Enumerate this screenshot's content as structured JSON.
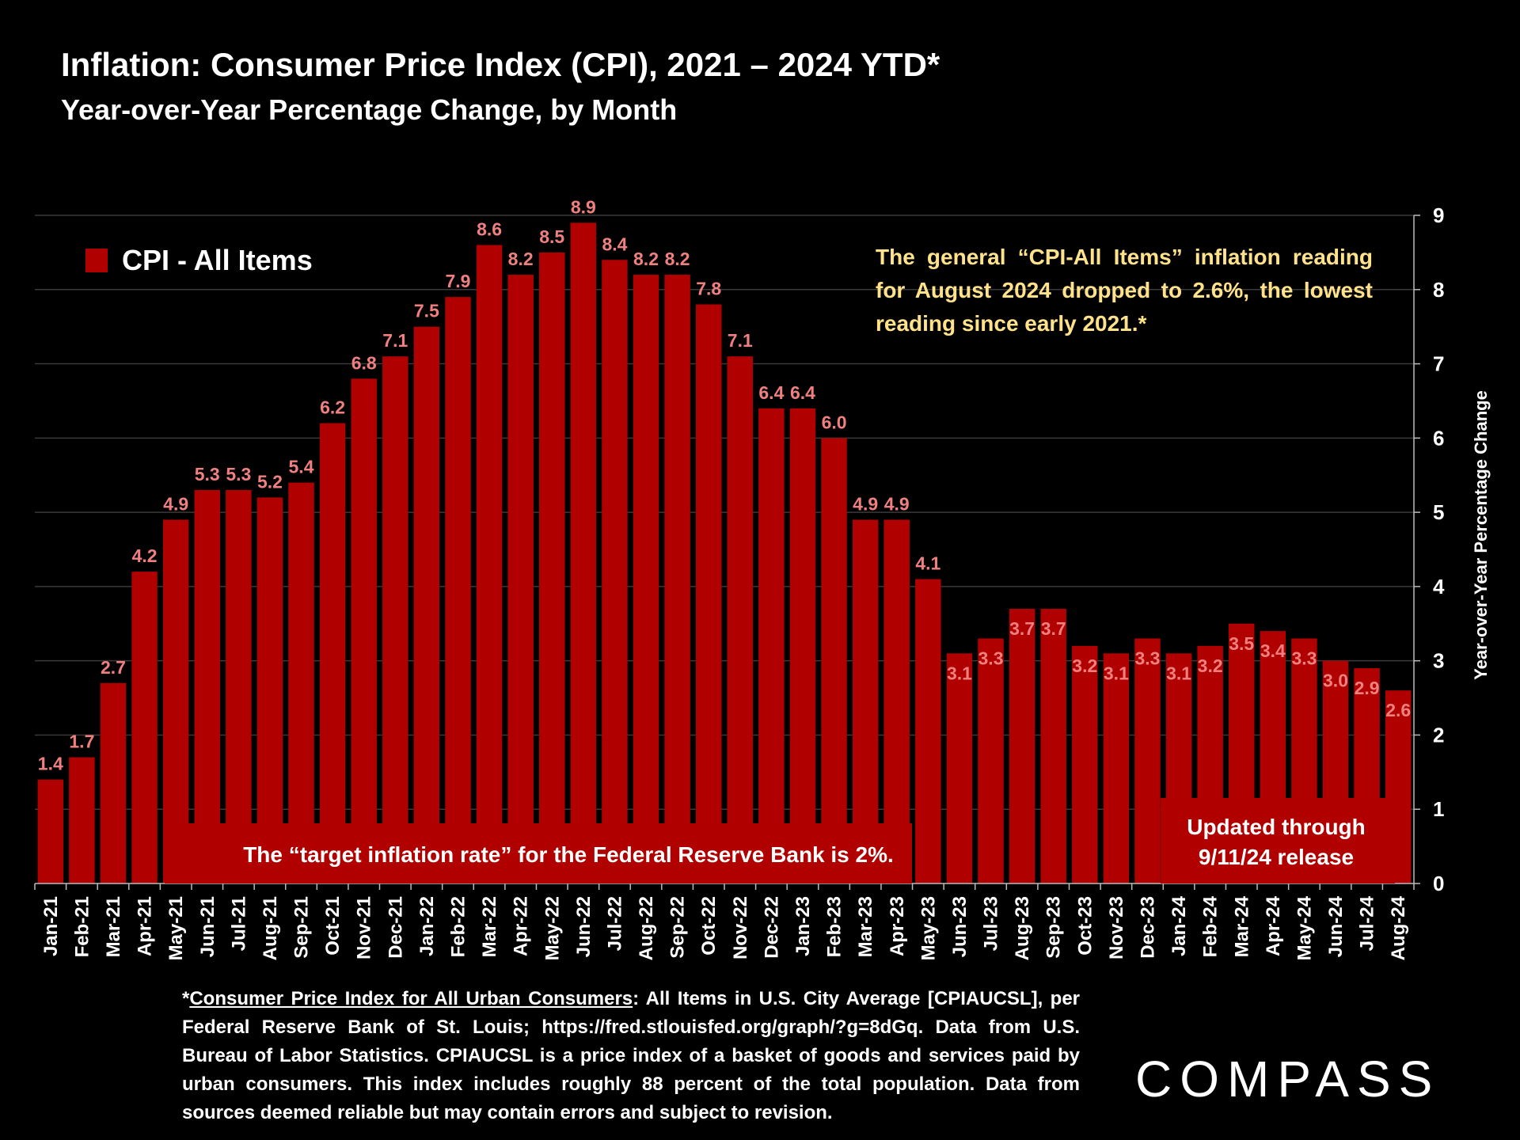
{
  "header": {
    "title": "Inflation: Consumer Price Index (CPI), 2021 – 2024 YTD*",
    "subtitle": "Year-over-Year Percentage Change, by Month"
  },
  "legend": {
    "label": "CPI - All Items",
    "color": "#b00000"
  },
  "annotations": {
    "note": "The general “CPI-All Items” inflation reading for August 2024 dropped to 2.6%, the lowest reading since early 2021.*",
    "target": "The “target inflation rate” for the Federal Reserve Bank is 2%.",
    "updated_line1": "Updated through",
    "updated_line2": "9/11/24 release"
  },
  "footnote": {
    "underlined": "Consumer Price Index for All Urban Consumers",
    "rest": ": All Items in U.S. City Average [CPIAUCSL], per Federal Reserve Bank of St. Louis; https://fred.stlouisfed.org/graph/?g=8dGq. Data from U.S. Bureau of Labor Statistics. CPIAUCSL is a price index of a basket of goods and services paid by urban consumers. This index includes roughly 88 percent of the total population. Data from sources deemed reliable but may contain errors and subject to revision."
  },
  "logo": {
    "text": "COMPASS"
  },
  "chart_data": {
    "type": "bar",
    "title": "Inflation: Consumer Price Index (CPI), 2021 – 2024 YTD*",
    "subtitle": "Year-over-Year Percentage Change, by Month",
    "ylabel": "Year-over-Year Percentage Change",
    "xlabel": "",
    "y_axis_side": "right",
    "ylim": [
      0,
      9
    ],
    "yticks": [
      0,
      1,
      2,
      3,
      4,
      5,
      6,
      7,
      8,
      9
    ],
    "grid": true,
    "legend_position": "top-left",
    "bar_color": "#b00000",
    "label_color": "#f08080",
    "categories": [
      "Jan-21",
      "Feb-21",
      "Mar-21",
      "Apr-21",
      "May-21",
      "Jun-21",
      "Jul-21",
      "Aug-21",
      "Sep-21",
      "Oct-21",
      "Nov-21",
      "Dec-21",
      "Jan-22",
      "Feb-22",
      "Mar-22",
      "Apr-22",
      "May-22",
      "Jun-22",
      "Jul-22",
      "Aug-22",
      "Sep-22",
      "Oct-22",
      "Nov-22",
      "Dec-22",
      "Jan-23",
      "Feb-23",
      "Mar-23",
      "Apr-23",
      "May-23",
      "Jun-23",
      "Jul-23",
      "Aug-23",
      "Sep-23",
      "Oct-23",
      "Nov-23",
      "Dec-23",
      "Jan-24",
      "Feb-24",
      "Mar-24",
      "Apr-24",
      "May-24",
      "Jun-24",
      "Jul-24",
      "Aug-24"
    ],
    "series": [
      {
        "name": "CPI - All Items",
        "values": [
          1.4,
          1.7,
          2.7,
          4.2,
          4.9,
          5.3,
          5.3,
          5.2,
          5.4,
          6.2,
          6.8,
          7.1,
          7.5,
          7.9,
          8.6,
          8.2,
          8.5,
          8.9,
          8.4,
          8.2,
          8.2,
          7.8,
          7.1,
          6.4,
          6.4,
          6.0,
          4.9,
          4.9,
          4.1,
          3.1,
          3.3,
          3.7,
          3.7,
          3.2,
          3.1,
          3.3,
          3.1,
          3.2,
          3.5,
          3.4,
          3.3,
          3.0,
          2.9,
          2.6
        ],
        "labels": [
          "1.4",
          "1.7",
          "2.7",
          "4.2",
          "4.9",
          "5.3",
          "5.3",
          "5.2",
          "5.4",
          "6.2",
          "6.8",
          "7.1",
          "7.5",
          "7.9",
          "8.6",
          "8.2",
          "8.5",
          "8.9",
          "8.4",
          "8.2",
          "8.2",
          "7.8",
          "7.1",
          "6.4",
          "6.4",
          "6.0",
          "4.9",
          "4.9",
          "4.1",
          "3.1",
          "3.3",
          "3.7",
          "3.7",
          "3.2",
          "3.1",
          "3.3",
          "3.1",
          "3.2",
          "3.5",
          "3.4",
          "3.3",
          "3.0",
          "2.9",
          "2.6"
        ]
      }
    ]
  }
}
